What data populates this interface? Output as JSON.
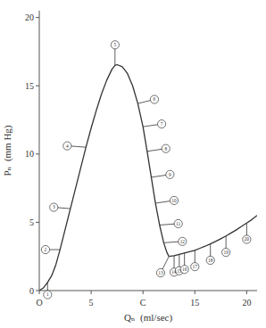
{
  "chart_data": {
    "type": "line",
    "xlabel": "Qₙ  (ml/sec)",
    "ylabel": "Pₙ  (mm Hg)",
    "xlim": [
      0,
      21
    ],
    "ylim": [
      0,
      20.5
    ],
    "xticks": [
      {
        "value": 0,
        "label": "O"
      },
      5,
      {
        "value": 10,
        "label": "C"
      },
      15,
      20
    ],
    "yticks": [
      0,
      5,
      10,
      15,
      20
    ],
    "grid": false,
    "color": "#333333",
    "series": [
      {
        "color": "#333333",
        "x": [
          0,
          0.4,
          0.8,
          1.2,
          1.6,
          2.0,
          2.5,
          3.0,
          3.5,
          4.0,
          4.5,
          5.0,
          5.5,
          6.0,
          6.5,
          7.0,
          7.3,
          7.5,
          8.0,
          8.5,
          9.0,
          9.5,
          10.0,
          10.4,
          10.8,
          11.2,
          11.6,
          12.0,
          12.3,
          12.5
        ],
        "values": [
          0,
          0.2,
          0.6,
          1.1,
          1.9,
          3.0,
          4.5,
          6.0,
          7.5,
          9.0,
          10.5,
          11.9,
          13.2,
          14.4,
          15.4,
          16.2,
          16.5,
          16.55,
          16.4,
          15.9,
          15.0,
          13.7,
          12.0,
          10.2,
          8.3,
          6.4,
          4.8,
          3.5,
          2.8,
          2.5
        ]
      },
      {
        "color": "#333333",
        "x": [
          12.5,
          13.0,
          13.5,
          14.0,
          14.5,
          15.0,
          15.5,
          16.0,
          16.5,
          17.0,
          17.5,
          18.0,
          18.5,
          19.0,
          19.5,
          20.0,
          20.5,
          21.0
        ],
        "values": [
          2.5,
          2.55,
          2.65,
          2.75,
          2.85,
          2.95,
          3.1,
          3.25,
          3.42,
          3.6,
          3.8,
          4.0,
          4.22,
          4.45,
          4.7,
          4.95,
          5.2,
          5.5
        ]
      }
    ],
    "annotations": [
      {
        "text": "1",
        "x": 0.8,
        "y": 0.6,
        "text_x": 0.8,
        "text_y": -0.3
      },
      {
        "text": "2",
        "x": 2.0,
        "y": 3.0,
        "text_x": 0.6,
        "text_y": 3.0
      },
      {
        "text": "3",
        "x": 3.0,
        "y": 6.0,
        "text_x": 1.4,
        "text_y": 6.1
      },
      {
        "text": "4",
        "x": 4.5,
        "y": 10.5,
        "text_x": 2.7,
        "text_y": 10.6
      },
      {
        "text": "5",
        "x": 7.3,
        "y": 16.5,
        "text_x": 7.3,
        "text_y": 18.0
      },
      {
        "text": "6",
        "x": 9.5,
        "y": 13.7,
        "text_x": 11.1,
        "text_y": 14.0
      },
      {
        "text": "7",
        "x": 10.0,
        "y": 12.0,
        "text_x": 11.8,
        "text_y": 12.2
      },
      {
        "text": "8",
        "x": 10.4,
        "y": 10.2,
        "text_x": 12.2,
        "text_y": 10.4
      },
      {
        "text": "9",
        "x": 10.8,
        "y": 8.3,
        "text_x": 12.6,
        "text_y": 8.5
      },
      {
        "text": "10",
        "x": 11.2,
        "y": 6.4,
        "text_x": 13.0,
        "text_y": 6.6
      },
      {
        "text": "11",
        "x": 11.6,
        "y": 4.8,
        "text_x": 13.4,
        "text_y": 4.9
      },
      {
        "text": "12",
        "x": 12.0,
        "y": 3.5,
        "text_x": 13.8,
        "text_y": 3.6
      },
      {
        "text": "13",
        "x": 12.5,
        "y": 2.5,
        "text_x": 11.7,
        "text_y": 1.3
      },
      {
        "text": "14",
        "x": 13.0,
        "y": 2.55,
        "text_x": 13.0,
        "text_y": 1.35
      },
      {
        "text": "15",
        "x": 13.5,
        "y": 2.65,
        "text_x": 13.5,
        "text_y": 1.45
      },
      {
        "text": "16",
        "x": 14.0,
        "y": 2.75,
        "text_x": 14.0,
        "text_y": 1.55
      },
      {
        "text": "17",
        "x": 15.0,
        "y": 2.95,
        "text_x": 15.0,
        "text_y": 1.75
      },
      {
        "text": "18",
        "x": 16.5,
        "y": 3.42,
        "text_x": 16.5,
        "text_y": 2.22
      },
      {
        "text": "19",
        "x": 18.0,
        "y": 4.0,
        "text_x": 18.0,
        "text_y": 2.8
      },
      {
        "text": "20",
        "x": 20.0,
        "y": 4.95,
        "text_x": 20.0,
        "text_y": 3.75
      }
    ]
  }
}
